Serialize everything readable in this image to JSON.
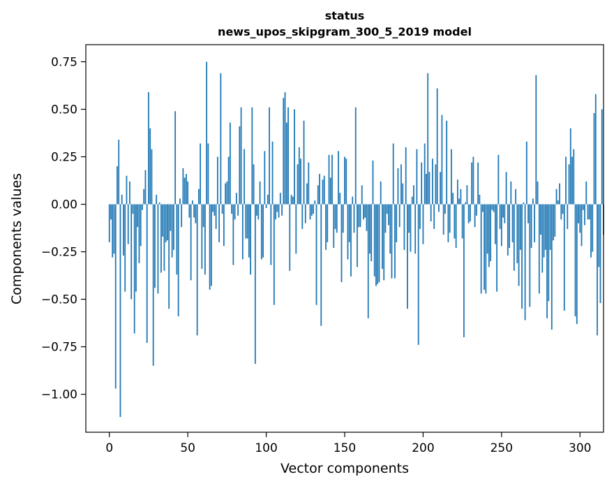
{
  "chart_data": {
    "type": "bar",
    "title": "status",
    "subtitle": "news_upos_skipgram_300_5_2019 model",
    "xlabel": "Vector components",
    "ylabel": "Components values",
    "xlim": [
      -15,
      315
    ],
    "ylim": [
      -1.2,
      0.84
    ],
    "xticks": [
      0,
      50,
      100,
      150,
      200,
      250,
      300
    ],
    "xtick_labels": [
      "0",
      "50",
      "100",
      "150",
      "200",
      "250",
      "300"
    ],
    "yticks": [
      -1.0,
      -0.75,
      -0.5,
      -0.25,
      0.0,
      0.25,
      0.5,
      0.75
    ],
    "ytick_labels": [
      "−1.00",
      "−0.75",
      "−0.50",
      "−0.25",
      "0.00",
      "0.25",
      "0.50",
      "0.75"
    ],
    "grid": false,
    "legend": false,
    "bar_color": "#1f77b4",
    "series": [
      {
        "values": [
          -0.2,
          -0.08,
          -0.28,
          -0.26,
          -0.97,
          0.2,
          0.34,
          -1.12,
          0.05,
          -0.27,
          -0.46,
          0.15,
          -0.21,
          0.12,
          -0.5,
          -0.05,
          -0.68,
          -0.46,
          -0.12,
          -0.31,
          -0.22,
          -0.03,
          0.08,
          0.18,
          -0.73,
          0.59,
          0.4,
          0.29,
          -0.85,
          -0.44,
          0.05,
          -0.47,
          0.01,
          -0.36,
          -0.17,
          -0.35,
          -0.2,
          -0.19,
          -0.55,
          -0.14,
          -0.28,
          -0.24,
          0.49,
          -0.37,
          -0.59,
          0.03,
          -0.12,
          0.19,
          0.14,
          0.16,
          0.12,
          -0.07,
          -0.4,
          0.02,
          -0.07,
          -0.1,
          -0.69,
          0.08,
          0.32,
          -0.34,
          -0.12,
          -0.37,
          0.75,
          0.32,
          -0.45,
          -0.43,
          -0.04,
          -0.06,
          -0.13,
          0.25,
          -0.2,
          0.69,
          -0.05,
          -0.22,
          0.11,
          0.12,
          0.25,
          0.43,
          -0.05,
          -0.32,
          -0.08,
          0.06,
          -0.06,
          0.41,
          0.51,
          -0.29,
          0.29,
          -0.18,
          -0.18,
          -0.28,
          -0.37,
          0.51,
          0.21,
          -0.84,
          -0.06,
          -0.08,
          0.12,
          -0.29,
          -0.28,
          0.28,
          -0.02,
          0.05,
          0.51,
          -0.32,
          0.33,
          -0.53,
          -0.08,
          -0.04,
          -0.07,
          0.06,
          -0.06,
          0.56,
          0.59,
          0.43,
          0.51,
          -0.35,
          0.05,
          0.04,
          0.5,
          -0.26,
          0.21,
          0.3,
          0.24,
          -0.13,
          0.44,
          -0.1,
          0.11,
          0.22,
          -0.08,
          -0.06,
          -0.05,
          0.02,
          -0.53,
          0.1,
          0.16,
          -0.64,
          0.13,
          0.15,
          -0.24,
          -0.2,
          0.26,
          0.14,
          0.26,
          -0.23,
          -0.13,
          -0.15,
          0.28,
          0.06,
          -0.41,
          -0.15,
          0.25,
          0.24,
          -0.29,
          -0.2,
          -0.38,
          0.04,
          -0.15,
          0.51,
          -0.33,
          -0.12,
          -0.12,
          0.1,
          -0.08,
          -0.07,
          -0.14,
          -0.6,
          -0.26,
          -0.3,
          0.23,
          -0.38,
          -0.43,
          -0.42,
          -0.41,
          0.12,
          -0.34,
          -0.4,
          -0.15,
          -0.05,
          -0.11,
          -0.26,
          -0.39,
          0.32,
          -0.39,
          -0.2,
          0.19,
          -0.12,
          0.21,
          0.11,
          -0.24,
          0.3,
          -0.55,
          -0.15,
          -0.25,
          0.04,
          0.1,
          -0.26,
          0.29,
          -0.74,
          -0.13,
          0.22,
          -0.21,
          0.32,
          0.16,
          0.69,
          0.17,
          -0.09,
          0.24,
          -0.13,
          0.21,
          0.61,
          -0.04,
          0.17,
          0.47,
          -0.16,
          -0.05,
          0.44,
          -0.2,
          -0.15,
          0.29,
          0.06,
          -0.18,
          -0.23,
          0.13,
          0.03,
          0.08,
          -0.18,
          -0.7,
          0.01,
          0.1,
          -0.1,
          -0.09,
          0.22,
          0.25,
          -0.12,
          -0.06,
          0.22,
          0.05,
          -0.47,
          -0.04,
          -0.45,
          -0.47,
          -0.26,
          -0.33,
          -0.3,
          -0.03,
          -0.04,
          -0.21,
          -0.46,
          0.26,
          -0.13,
          -0.22,
          -0.07,
          -0.1,
          0.17,
          -0.27,
          -0.23,
          0.12,
          -0.2,
          -0.35,
          0.08,
          -0.31,
          -0.43,
          -0.24,
          -0.55,
          0.01,
          -0.61,
          0.33,
          -0.1,
          -0.54,
          -0.23,
          0.03,
          -0.2,
          0.68,
          0.12,
          -0.47,
          -0.16,
          -0.36,
          -0.28,
          -0.24,
          -0.6,
          -0.51,
          -0.24,
          -0.66,
          -0.19,
          -0.17,
          0.08,
          0.02,
          0.11,
          -0.08,
          -0.05,
          -0.56,
          0.25,
          -0.13,
          0.21,
          0.4,
          0.25,
          0.29,
          -0.59,
          -0.63,
          -0.1,
          -0.15,
          -0.22,
          -0.03,
          -0.11,
          0.12,
          -0.08,
          -0.08,
          -0.28,
          -0.25,
          0.48,
          0.58,
          -0.69,
          -0.33,
          -0.52,
          0.5,
          -0.16
        ]
      }
    ]
  }
}
